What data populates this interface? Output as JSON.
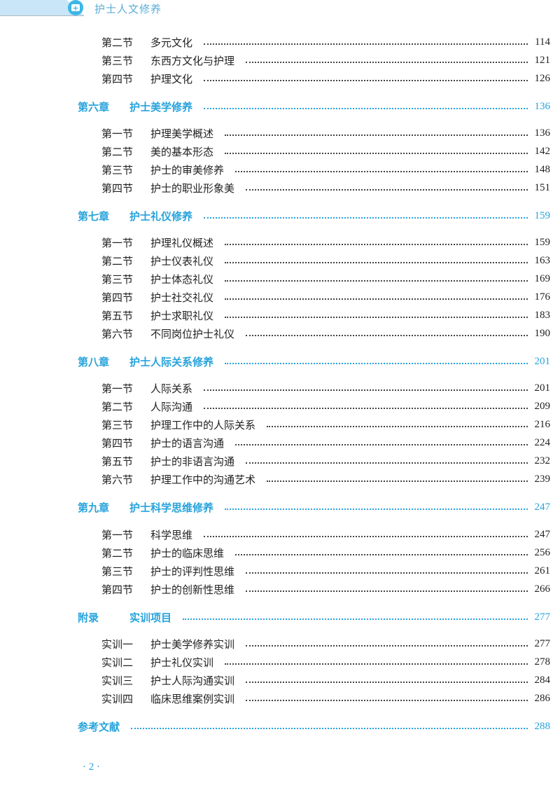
{
  "header": {
    "title": "护士人文修养",
    "icon": "medical-kit-icon",
    "accent": "#27a3dc"
  },
  "toc": [
    {
      "type": "sec",
      "num": "第二节",
      "title": "多元文化",
      "page": "114"
    },
    {
      "type": "sec",
      "num": "第三节",
      "title": "东西方文化与护理",
      "page": "121"
    },
    {
      "type": "sec",
      "num": "第四节",
      "title": "护理文化",
      "page": "126"
    },
    {
      "type": "chap",
      "num": "第六章",
      "title": "护士美学修养",
      "page": "136"
    },
    {
      "type": "sec",
      "num": "第一节",
      "title": "护理美学概述",
      "page": "136"
    },
    {
      "type": "sec",
      "num": "第二节",
      "title": "美的基本形态",
      "page": "142"
    },
    {
      "type": "sec",
      "num": "第三节",
      "title": "护士的审美修养",
      "page": "148"
    },
    {
      "type": "sec",
      "num": "第四节",
      "title": "护士的职业形象美",
      "page": "151"
    },
    {
      "type": "chap",
      "num": "第七章",
      "title": "护士礼仪修养",
      "page": "159"
    },
    {
      "type": "sec",
      "num": "第一节",
      "title": "护理礼仪概述",
      "page": "159"
    },
    {
      "type": "sec",
      "num": "第二节",
      "title": "护士仪表礼仪",
      "page": "163"
    },
    {
      "type": "sec",
      "num": "第三节",
      "title": "护士体态礼仪",
      "page": "169"
    },
    {
      "type": "sec",
      "num": "第四节",
      "title": "护士社交礼仪",
      "page": "176"
    },
    {
      "type": "sec",
      "num": "第五节",
      "title": "护士求职礼仪",
      "page": "183"
    },
    {
      "type": "sec",
      "num": "第六节",
      "title": "不同岗位护士礼仪",
      "page": "190"
    },
    {
      "type": "chap",
      "num": "第八章",
      "title": "护士人际关系修养",
      "page": "201"
    },
    {
      "type": "sec",
      "num": "第一节",
      "title": "人际关系",
      "page": "201"
    },
    {
      "type": "sec",
      "num": "第二节",
      "title": "人际沟通",
      "page": "209"
    },
    {
      "type": "sec",
      "num": "第三节",
      "title": "护理工作中的人际关系",
      "page": "216"
    },
    {
      "type": "sec",
      "num": "第四节",
      "title": "护士的语言沟通",
      "page": "224"
    },
    {
      "type": "sec",
      "num": "第五节",
      "title": "护士的非语言沟通",
      "page": "232"
    },
    {
      "type": "sec",
      "num": "第六节",
      "title": "护理工作中的沟通艺术",
      "page": "239"
    },
    {
      "type": "chap",
      "num": "第九章",
      "title": "护士科学思维修养",
      "page": "247"
    },
    {
      "type": "sec",
      "num": "第一节",
      "title": "科学思维",
      "page": "247"
    },
    {
      "type": "sec",
      "num": "第二节",
      "title": "护士的临床思维",
      "page": "256"
    },
    {
      "type": "sec",
      "num": "第三节",
      "title": "护士的评判性思维",
      "page": "261"
    },
    {
      "type": "sec",
      "num": "第四节",
      "title": "护士的创新性思维",
      "page": "266"
    },
    {
      "type": "chap",
      "num": "附录",
      "title": "实训项目",
      "page": "277"
    },
    {
      "type": "sec",
      "num": "实训一",
      "title": "护士美学修养实训",
      "page": "277"
    },
    {
      "type": "sec",
      "num": "实训二",
      "title": "护士礼仪实训",
      "page": "278"
    },
    {
      "type": "sec",
      "num": "实训三",
      "title": "护士人际沟通实训",
      "page": "284"
    },
    {
      "type": "sec",
      "num": "实训四",
      "title": "临床思维案例实训",
      "page": "286"
    },
    {
      "type": "chap",
      "num": "",
      "title": "参考文献",
      "page": "288"
    }
  ],
  "footer": {
    "page_number": "· 2 ·"
  }
}
